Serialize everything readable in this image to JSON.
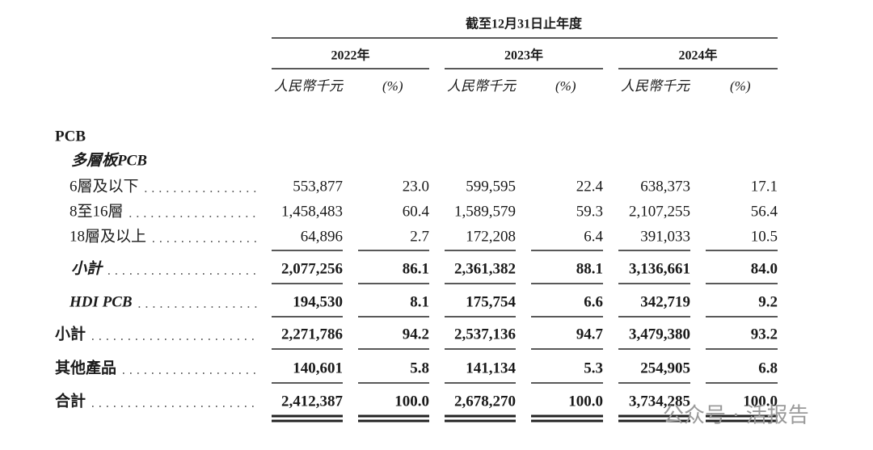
{
  "header": {
    "period": "截至12月31日止年度",
    "years": [
      "2022年",
      "2023年",
      "2024年"
    ],
    "units": [
      [
        "人民幣千元",
        "(%)"
      ],
      [
        "人民幣千元",
        "(%)"
      ],
      [
        "人民幣千元",
        "(%)"
      ]
    ]
  },
  "rows": [
    {
      "label": "PCB"
    },
    {
      "label": "多層板PCB"
    },
    {
      "label": "6層及以下",
      "cells": [
        "553,877",
        "23.0",
        "599,595",
        "22.4",
        "638,373",
        "17.1"
      ]
    },
    {
      "label": "8至16層",
      "cells": [
        "1,458,483",
        "60.4",
        "1,589,579",
        "59.3",
        "2,107,255",
        "56.4"
      ]
    },
    {
      "label": "18層及以上",
      "cells": [
        "64,896",
        "2.7",
        "172,208",
        "6.4",
        "391,033",
        "10.5"
      ]
    },
    {
      "label": "小計",
      "cells": [
        "2,077,256",
        "86.1",
        "2,361,382",
        "88.1",
        "3,136,661",
        "84.0"
      ]
    },
    {
      "label": "HDI PCB",
      "cells": [
        "194,530",
        "8.1",
        "175,754",
        "6.6",
        "342,719",
        "9.2"
      ]
    },
    {
      "label": "小計",
      "cells": [
        "2,271,786",
        "94.2",
        "2,537,136",
        "94.7",
        "3,479,380",
        "93.2"
      ]
    },
    {
      "label": "其他產品",
      "cells": [
        "140,601",
        "5.8",
        "141,134",
        "5.3",
        "254,905",
        "6.8"
      ]
    },
    {
      "label": "合計",
      "cells": [
        "2,412,387",
        "100.0",
        "2,678,270",
        "100.0",
        "3,734,285",
        "100.0"
      ]
    }
  ],
  "watermark": "公众号 · 活报告"
}
